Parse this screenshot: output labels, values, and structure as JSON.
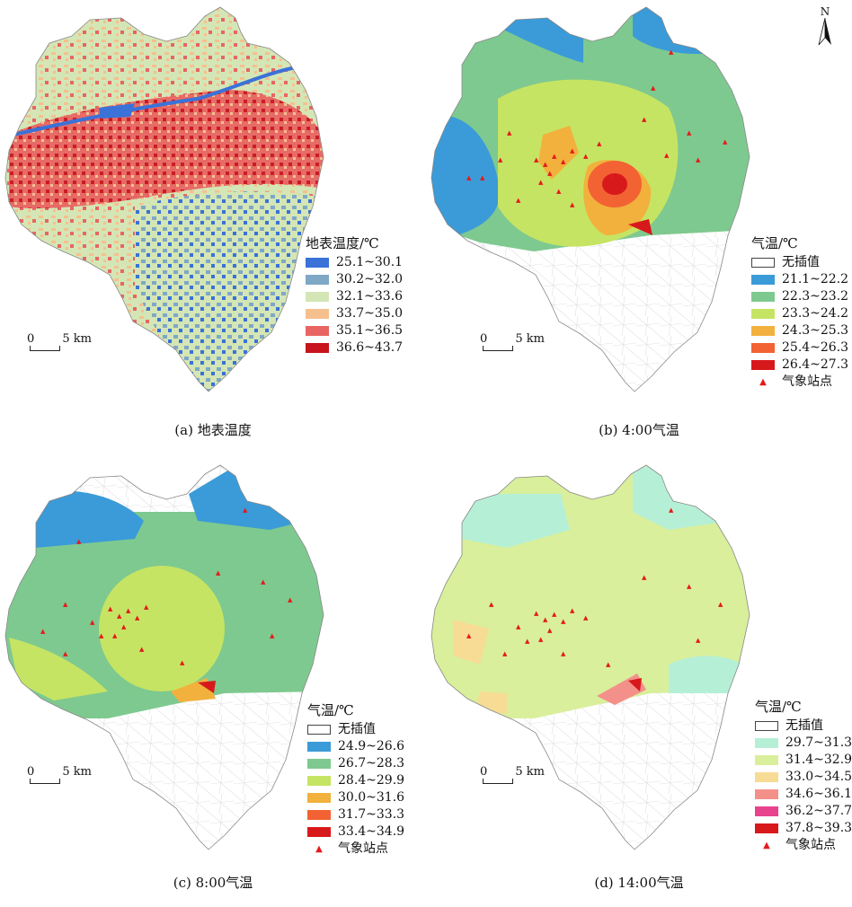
{
  "panels": {
    "a": {
      "caption": "(a) 地表温度",
      "legend_title": "地表温度/℃",
      "classes": [
        {
          "label": "25.1~30.1",
          "color": "#3a72d8"
        },
        {
          "label": "30.2~32.0",
          "color": "#7fa7c6"
        },
        {
          "label": "32.1~33.6",
          "color": "#d4e6b5"
        },
        {
          "label": "33.7~35.0",
          "color": "#f5c08e"
        },
        {
          "label": "35.1~36.5",
          "color": "#e86563"
        },
        {
          "label": "36.6~43.7",
          "color": "#c8141c"
        }
      ]
    },
    "b": {
      "caption": "(b) 4:00气温",
      "legend_title": "气温/℃",
      "no_data_label": "无插值",
      "classes": [
        {
          "label": "21.1~22.2",
          "color": "#3a9bd8"
        },
        {
          "label": "22.3~23.2",
          "color": "#7ec98f"
        },
        {
          "label": "23.3~24.2",
          "color": "#c6e463"
        },
        {
          "label": "24.3~25.3",
          "color": "#f2b13c"
        },
        {
          "label": "25.4~26.3",
          "color": "#f26233"
        },
        {
          "label": "26.4~27.3",
          "color": "#d7191c"
        }
      ],
      "station_label": "气象站点"
    },
    "c": {
      "caption": "(c) 8:00气温",
      "legend_title": "气温/℃",
      "no_data_label": "无插值",
      "classes": [
        {
          "label": "24.9~26.6",
          "color": "#3a9bd8"
        },
        {
          "label": "26.7~28.3",
          "color": "#7ec98f"
        },
        {
          "label": "28.4~29.9",
          "color": "#c6e463"
        },
        {
          "label": "30.0~31.6",
          "color": "#f2b13c"
        },
        {
          "label": "31.7~33.3",
          "color": "#f26233"
        },
        {
          "label": "33.4~34.9",
          "color": "#d7191c"
        }
      ],
      "station_label": "气象站点"
    },
    "d": {
      "caption": "(d) 14:00气温",
      "legend_title": "气温/℃",
      "no_data_label": "无插值",
      "classes": [
        {
          "label": "29.7~31.3",
          "color": "#b5f0d6"
        },
        {
          "label": "31.4~32.9",
          "color": "#d9ef9b"
        },
        {
          "label": "33.0~34.5",
          "color": "#f6dc94"
        },
        {
          "label": "34.6~36.1",
          "color": "#f4908a"
        },
        {
          "label": "36.2~37.7",
          "color": "#e8448e"
        },
        {
          "label": "37.8~39.3",
          "color": "#d7191c"
        }
      ],
      "station_label": "气象站点"
    }
  },
  "scale_bar": {
    "zero": "0",
    "distance": "5 km"
  },
  "north_label": "N"
}
